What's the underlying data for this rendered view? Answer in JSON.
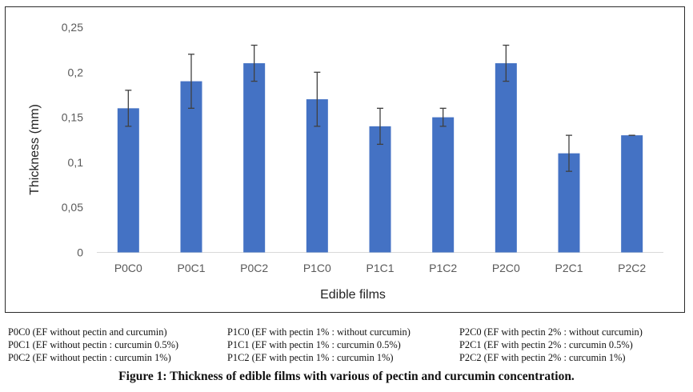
{
  "chart_data": {
    "type": "bar",
    "xlabel": "Edible films",
    "ylabel": "Thickness (mm)",
    "ylim": [
      0,
      0.25
    ],
    "yticks": [
      {
        "value": 0,
        "label": "0"
      },
      {
        "value": 0.05,
        "label": "0,05"
      },
      {
        "value": 0.1,
        "label": "0,1"
      },
      {
        "value": 0.15,
        "label": "0,15"
      },
      {
        "value": 0.2,
        "label": "0,2"
      },
      {
        "value": 0.25,
        "label": "0,25"
      }
    ],
    "categories": [
      "P0C0",
      "P0C1",
      "P0C2",
      "P1C0",
      "P1C1",
      "P1C2",
      "P2C0",
      "P2C1",
      "P2C2"
    ],
    "values": [
      0.16,
      0.19,
      0.21,
      0.17,
      0.14,
      0.15,
      0.21,
      0.11,
      0.13
    ],
    "errors": [
      0.02,
      0.03,
      0.02,
      0.03,
      0.02,
      0.01,
      0.02,
      0.02,
      0.0
    ],
    "bar_color": "#4472c4",
    "grid": false
  },
  "legend": {
    "columns": [
      [
        "P0C0 (EF without pectin and curcumin)",
        "P0C1 (EF without pectin : curcumin 0.5%)",
        "P0C2 (EF without pectin : curcumin 1%)"
      ],
      [
        "P1C0 (EF with pectin 1% : without curcumin)",
        "P1C1 (EF with pectin 1% : curcumin 0.5%)",
        "P1C2 (EF with pectin 1% : curcumin 1%)"
      ],
      [
        "P2C0 (EF with pectin 2% : without curcumin)",
        "P2C1 (EF with pectin 2% : curcumin 0.5%)",
        "P2C2 (EF with pectin 2% : curcumin 1%)"
      ]
    ]
  },
  "caption": "Figure 1: Thickness of edible films with various of pectin and curcumin concentration."
}
